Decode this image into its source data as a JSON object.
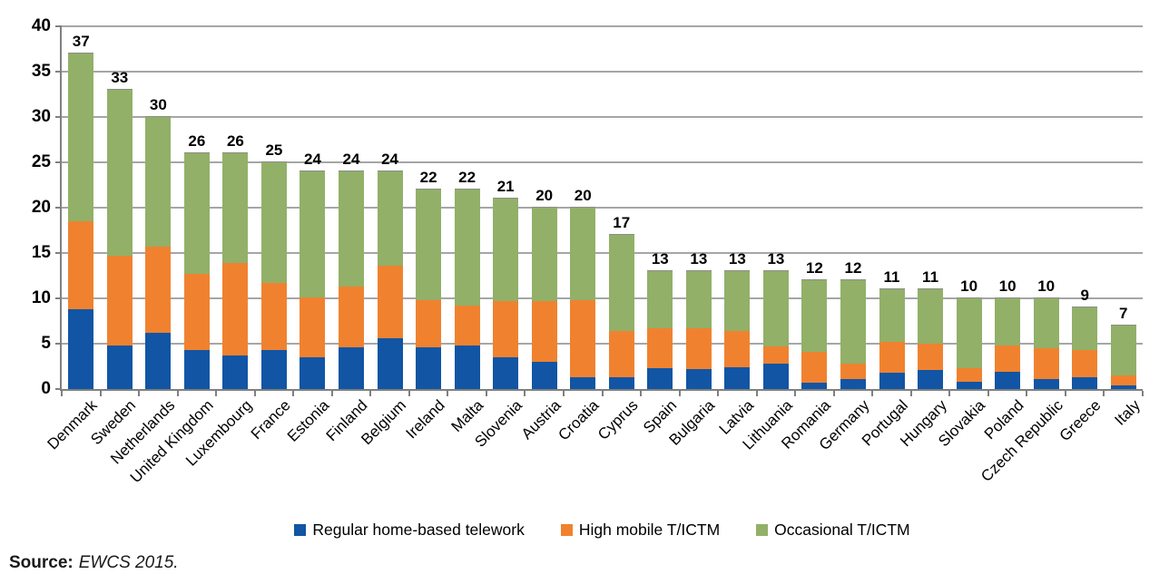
{
  "chart_data": {
    "type": "stacked-bar",
    "title": "",
    "xlabel": "",
    "ylabel": "",
    "grid": true,
    "legend_position": "bottom",
    "y_axis": {
      "min": 0,
      "max": 40,
      "step": 5,
      "ticks": [
        0,
        5,
        10,
        15,
        20,
        25,
        30,
        35,
        40
      ]
    },
    "categories": [
      "Denmark",
      "Sweden",
      "Netherlands",
      "United Kingdom",
      "Luxembourg",
      "France",
      "Estonia",
      "Finland",
      "Belgium",
      "Ireland",
      "Malta",
      "Slovenia",
      "Austria",
      "Croatia",
      "Cyprus",
      "Spain",
      "Bulgaria",
      "Latvia",
      "Lithuania",
      "Romania",
      "Germany",
      "Portugal",
      "Hungary",
      "Slovakia",
      "Poland",
      "Czech Republic",
      "Greece",
      "Italy"
    ],
    "series": [
      {
        "name": "Regular home-based telework",
        "color": "#1155a4",
        "values": [
          8.8,
          4.8,
          6.2,
          4.3,
          3.7,
          4.3,
          3.5,
          4.6,
          5.6,
          4.6,
          4.8,
          3.5,
          3.0,
          1.3,
          1.3,
          2.3,
          2.2,
          2.4,
          2.8,
          0.7,
          1.1,
          1.8,
          2.1,
          0.8,
          1.9,
          1.1,
          1.3,
          0.4
        ]
      },
      {
        "name": "High mobile T/ICTM",
        "color": "#f0822f",
        "values": [
          9.7,
          9.9,
          9.5,
          8.4,
          10.2,
          7.4,
          6.6,
          6.7,
          8.0,
          5.2,
          4.4,
          6.2,
          6.7,
          8.5,
          5.1,
          4.4,
          4.5,
          4.0,
          1.9,
          3.4,
          1.7,
          3.4,
          2.9,
          1.5,
          2.9,
          3.4,
          3.0,
          1.1
        ]
      },
      {
        "name": "Occasional T/ICTM",
        "color": "#92b068",
        "values": [
          18.5,
          18.3,
          14.3,
          13.3,
          12.1,
          13.3,
          13.9,
          12.7,
          10.4,
          12.2,
          12.8,
          11.3,
          10.3,
          10.2,
          10.6,
          6.3,
          6.3,
          6.6,
          8.3,
          7.9,
          9.2,
          5.8,
          6.0,
          7.7,
          5.2,
          5.5,
          4.7,
          5.5
        ]
      }
    ],
    "bar_total_labels": [
      37,
      33,
      30,
      26,
      26,
      25,
      24,
      24,
      24,
      22,
      22,
      21,
      20,
      20,
      17,
      13,
      13,
      13,
      13,
      12,
      12,
      11,
      11,
      10,
      10,
      10,
      9,
      7
    ]
  },
  "source": {
    "label": "Source:",
    "text": "EWCS 2015."
  },
  "style_colors": {
    "gridline": "#a6a6a6",
    "axis": "#808080",
    "text": "#000000"
  }
}
